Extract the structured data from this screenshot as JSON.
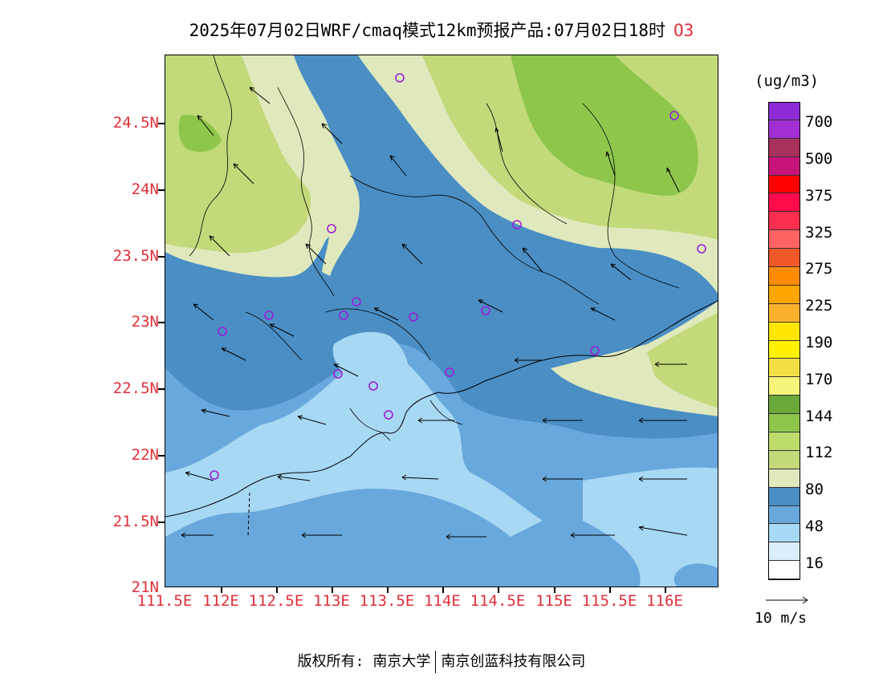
{
  "title": {
    "main": "2025年07月02日WRF/cmaq模式12km预报产品:07月02日18时",
    "species": "O3"
  },
  "map": {
    "lat_labels": [
      "24.5N",
      "24N",
      "23.5N",
      "23N",
      "22.5N",
      "22N",
      "21.5N",
      "21N"
    ],
    "lon_labels": [
      "111.5E",
      "112E",
      "112.5E",
      "113E",
      "113.5E",
      "114E",
      "114.5E",
      "115E",
      "115.5E",
      "116E"
    ]
  },
  "legend": {
    "unit": "(ug/m3)",
    "levels": [
      "700",
      "500",
      "375",
      "325",
      "275",
      "225",
      "190",
      "170",
      "144",
      "112",
      "80",
      "48",
      "16"
    ],
    "colors": [
      "#8e2bd6",
      "#a22fd3",
      "#a8305c",
      "#c8147a",
      "#ff0000",
      "#ff0a4a",
      "#ff2e4e",
      "#ff6464",
      "#f0582a",
      "#ff8c00",
      "#ffa600",
      "#fbb12e",
      "#ffe500",
      "#fff200",
      "#f2df45",
      "#f4f57a",
      "#6aa83a",
      "#8ec64c",
      "#bddc6c",
      "#c2da7a",
      "#dfe9bd",
      "#4a8ec4",
      "#68a8dc",
      "#a7d8f4",
      "#dbeefb",
      "#ffffff"
    ]
  },
  "wind": {
    "reference_label": "10 m/s"
  },
  "footer": {
    "copyright": "版权所有: 南京大学",
    "company": "南京创蓝科技有限公司"
  }
}
